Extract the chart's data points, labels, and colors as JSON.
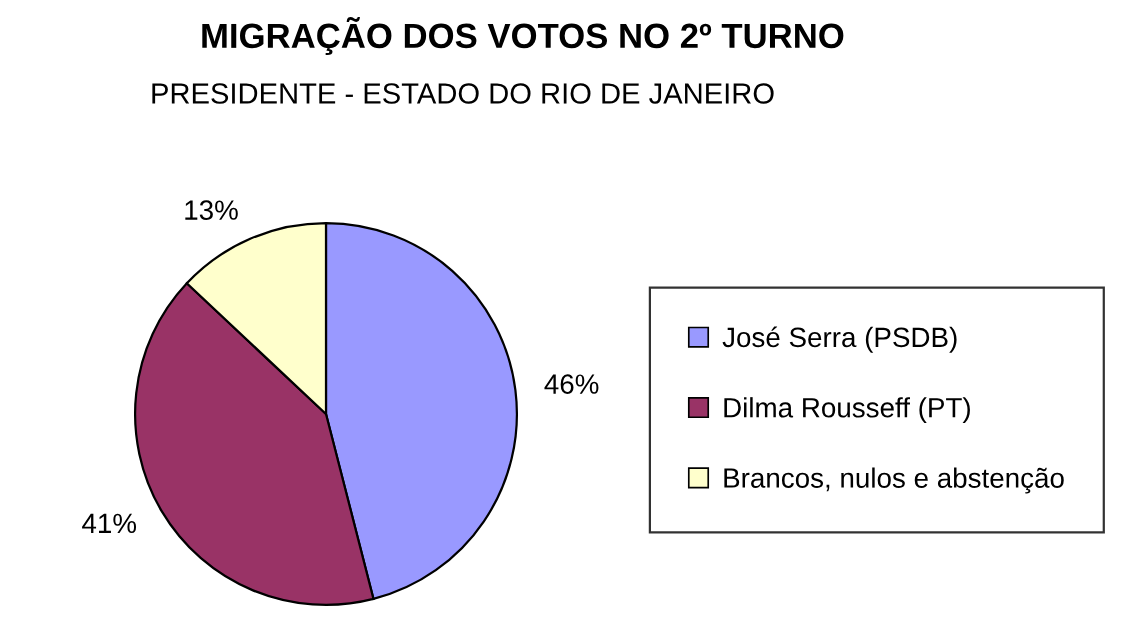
{
  "chart_data": {
    "type": "pie",
    "title": "MIGRAÇÃO DOS VOTOS NO 2º TURNO",
    "subtitle": "PRESIDENTE - ESTADO DO RIO DE JANEIRO",
    "categories": [
      "José Serra (PSDB)",
      "Dilma Rousseff (PT)",
      "Brancos, nulos e abstenção"
    ],
    "values": [
      46,
      41,
      13
    ],
    "colors": [
      "#9999ff",
      "#993366",
      "#ffffcc"
    ],
    "value_labels": [
      "46%",
      "41%",
      "13%"
    ],
    "legend": "right"
  }
}
